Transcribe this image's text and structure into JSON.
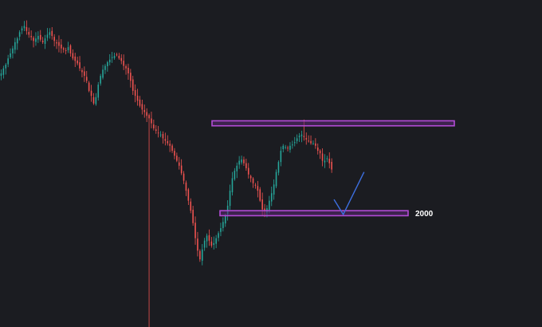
{
  "chart_data": {
    "type": "candlestick",
    "title": "",
    "xlabel": "",
    "ylabel": "",
    "grid": false,
    "legend": "none",
    "y_range": [
      1300,
      3600
    ],
    "colors": {
      "background": "#1b1c21",
      "up": "#26a69a",
      "down": "#ef5350",
      "zone_stroke": "#b24bd6",
      "zone_fill": "#5a2a74",
      "projection": "#3d6fe0"
    },
    "annotations": {
      "resistance_zone": {
        "low": 2720,
        "high": 2760
      },
      "support_zone": {
        "low": 2000,
        "high": 2040,
        "label": "2000"
      },
      "projection": [
        {
          "bar": 144,
          "price": 2130
        },
        {
          "bar": 148,
          "price": 2010
        },
        {
          "bar": 157,
          "price": 2350
        }
      ]
    },
    "series": [
      {
        "closes": [
          3140,
          3180,
          3210,
          3260,
          3300,
          3340,
          3390,
          3420,
          3470,
          3500,
          3520,
          3480,
          3450,
          3430,
          3400,
          3420,
          3440,
          3410,
          3390,
          3420,
          3450,
          3470,
          3440,
          3400,
          3380,
          3360,
          3340,
          3330,
          3320,
          3350,
          3300,
          3260,
          3240,
          3220,
          3180,
          3150,
          3120,
          3080,
          3000,
          2960,
          2900,
          2950,
          3050,
          3120,
          3170,
          3200,
          3230,
          3250,
          3270,
          3280,
          3290,
          3260,
          3240,
          3200,
          3180,
          3140,
          3080,
          3000,
          2960,
          2920,
          2880,
          2850,
          2830,
          2800,
          2780,
          2740,
          2700,
          2680,
          2660,
          2650,
          2620,
          2600,
          2580,
          2560,
          2520,
          2480,
          2440,
          2400,
          2340,
          2280,
          2200,
          2120,
          2040,
          1940,
          1820,
          1720,
          1650,
          1730,
          1800,
          1840,
          1800,
          1760,
          1780,
          1820,
          1860,
          1900,
          1950,
          2000,
          2080,
          2200,
          2300,
          2360,
          2400,
          2440,
          2450,
          2420,
          2380,
          2330,
          2300,
          2260,
          2240,
          2200,
          2120,
          2050,
          2040,
          2060,
          2120,
          2180,
          2250,
          2350,
          2430,
          2520,
          2560,
          2550,
          2540,
          2560,
          2570,
          2590,
          2620,
          2640,
          2650,
          2630,
          2610,
          2600,
          2580,
          2580,
          2560,
          2520,
          2500,
          2440,
          2440,
          2460,
          2420,
          2370
        ],
        "wick_spikes": [
          {
            "bar": 131,
            "high": 2770
          },
          {
            "bar": 64,
            "low": 1060
          }
        ]
      }
    ]
  }
}
